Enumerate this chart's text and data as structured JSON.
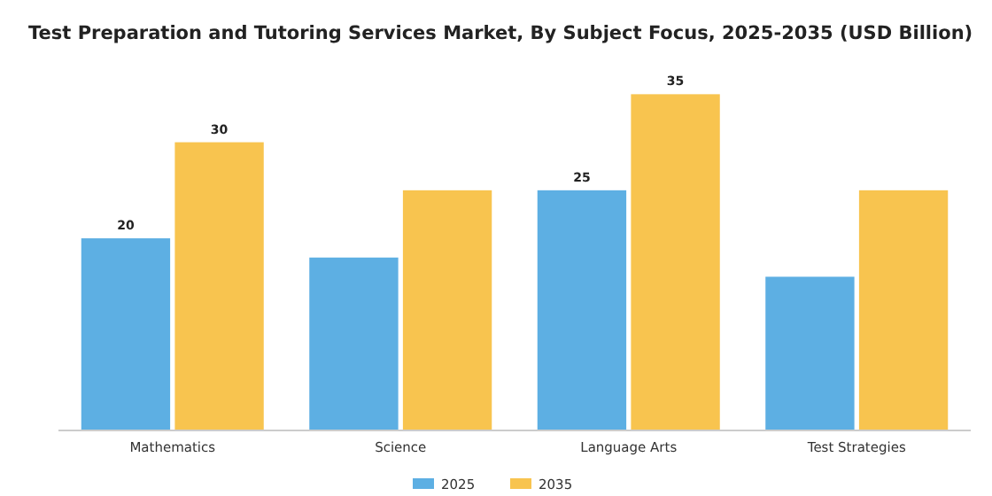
{
  "chart_data": {
    "type": "bar",
    "title": "Test Preparation and Tutoring Services Market, By Subject Focus, 2025-2035 (USD Billion)",
    "categories": [
      "Mathematics",
      "Science",
      "Language Arts",
      "Test Strategies"
    ],
    "series": [
      {
        "name": "2025",
        "color": "#5dafe3",
        "values": [
          20,
          18,
          25,
          16
        ],
        "value_labels": [
          "20",
          null,
          "25",
          null
        ]
      },
      {
        "name": "2035",
        "color": "#f8c44f",
        "values": [
          30,
          25,
          35,
          25
        ],
        "value_labels": [
          "30",
          null,
          "35",
          null
        ]
      }
    ],
    "legend": "bottom",
    "grid": false
  }
}
